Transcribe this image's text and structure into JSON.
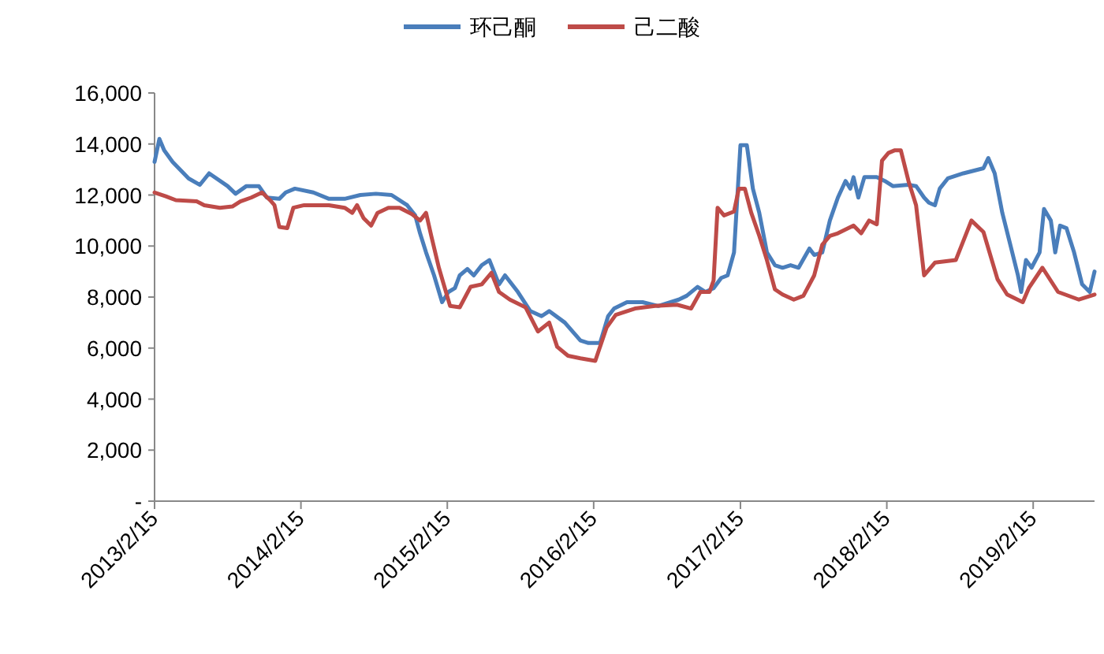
{
  "chart_data": {
    "type": "line",
    "legend": "top",
    "xlim": [
      "2013-02-15",
      "2019-07-18"
    ],
    "xticks": [
      {
        "value": "2013-02-15",
        "label": "2013/2/15"
      },
      {
        "value": "2014-02-15",
        "label": "2014/2/15"
      },
      {
        "value": "2015-02-15",
        "label": "2015/2/15"
      },
      {
        "value": "2016-02-15",
        "label": "2016/2/15"
      },
      {
        "value": "2017-02-15",
        "label": "2017/2/15"
      },
      {
        "value": "2018-02-15",
        "label": "2018/2/15"
      },
      {
        "value": "2019-02-15",
        "label": "2019/2/15"
      }
    ],
    "ylim": [
      0,
      16000
    ],
    "yticks": [
      {
        "value": 0,
        "label": "-"
      },
      {
        "value": 2000,
        "label": "2,000"
      },
      {
        "value": 4000,
        "label": "4,000"
      },
      {
        "value": 6000,
        "label": "6,000"
      },
      {
        "value": 8000,
        "label": "8,000"
      },
      {
        "value": 10000,
        "label": "10,000"
      },
      {
        "value": 12000,
        "label": "12,000"
      },
      {
        "value": 14000,
        "label": "14,000"
      },
      {
        "value": 16000,
        "label": "16,000"
      }
    ],
    "series": [
      {
        "name": "环己酮",
        "color": "#4a7ebb",
        "x": [
          "2013-02-15",
          "2013-02-27",
          "2013-03-11",
          "2013-04-01",
          "2013-05-11",
          "2013-06-08",
          "2013-07-01",
          "2013-08-16",
          "2013-09-05",
          "2013-10-02",
          "2013-11-02",
          "2013-11-22",
          "2013-12-23",
          "2014-01-08",
          "2014-01-31",
          "2014-03-18",
          "2014-04-26",
          "2014-06-04",
          "2014-07-13",
          "2014-08-21",
          "2014-09-29",
          "2014-11-07",
          "2014-11-27",
          "2014-12-09",
          "2014-12-24",
          "2015-01-13",
          "2015-02-02",
          "2015-02-18",
          "2015-03-06",
          "2015-03-18",
          "2015-04-06",
          "2015-04-22",
          "2015-05-12",
          "2015-05-31",
          "2015-06-24",
          "2015-07-09",
          "2015-08-10",
          "2015-09-10",
          "2015-10-08",
          "2015-10-27",
          "2015-12-05",
          "2016-01-13",
          "2016-02-02",
          "2016-03-02",
          "2016-03-22",
          "2016-04-06",
          "2016-05-08",
          "2016-06-16",
          "2016-07-25",
          "2016-09-14",
          "2016-10-04",
          "2016-10-31",
          "2016-11-20",
          "2016-12-10",
          "2016-12-29",
          "2017-01-14",
          "2017-01-30",
          "2017-02-15",
          "2017-03-03",
          "2017-03-18",
          "2017-04-03",
          "2017-04-22",
          "2017-05-12",
          "2017-05-31",
          "2017-06-20",
          "2017-07-10",
          "2017-08-06",
          "2017-08-18",
          "2017-09-07",
          "2017-09-26",
          "2017-10-16",
          "2017-11-04",
          "2017-11-16",
          "2017-11-24",
          "2017-12-06",
          "2017-12-21",
          "2018-01-21",
          "2018-02-10",
          "2018-03-02",
          "2018-04-10",
          "2018-04-29",
          "2018-05-19",
          "2018-05-31",
          "2018-06-15",
          "2018-06-27",
          "2018-07-17",
          "2018-08-25",
          "2018-10-14",
          "2018-10-26",
          "2018-11-11",
          "2018-11-30",
          "2018-12-20",
          "2019-01-08",
          "2019-01-16",
          "2019-01-28",
          "2019-02-11",
          "2019-03-03",
          "2019-03-14",
          "2019-03-31",
          "2019-04-11",
          "2019-04-23",
          "2019-05-09",
          "2019-05-28",
          "2019-06-17",
          "2019-07-06",
          "2019-07-18"
        ],
        "values": [
          13300,
          14200,
          13750,
          13300,
          12650,
          12400,
          12850,
          12350,
          12050,
          12350,
          12350,
          11900,
          11850,
          12100,
          12250,
          12100,
          11850,
          11850,
          12000,
          12050,
          12000,
          11600,
          11200,
          10500,
          9750,
          8850,
          7800,
          8200,
          8350,
          8850,
          9100,
          8850,
          9250,
          9450,
          8500,
          8850,
          8200,
          7450,
          7250,
          7450,
          7000,
          6300,
          6200,
          6200,
          7250,
          7550,
          7800,
          7800,
          7650,
          7900,
          8050,
          8400,
          8200,
          8350,
          8750,
          8850,
          9750,
          13950,
          13950,
          12250,
          11300,
          9750,
          9250,
          9150,
          9250,
          9150,
          9900,
          9650,
          9750,
          11000,
          11900,
          12550,
          12250,
          12700,
          11900,
          12700,
          12700,
          12550,
          12350,
          12400,
          12350,
          11900,
          11700,
          11600,
          12250,
          12650,
          12850,
          13050,
          13450,
          12850,
          11300,
          10050,
          8850,
          8200,
          9450,
          9150,
          9750,
          11450,
          11000,
          9750,
          10800,
          10700,
          9750,
          8500,
          8200,
          9000
        ]
      },
      {
        "name": "己二酸",
        "color": "#be4b48",
        "x": [
          "2013-02-15",
          "2013-03-15",
          "2013-04-09",
          "2013-05-31",
          "2013-06-19",
          "2013-07-28",
          "2013-08-28",
          "2013-09-17",
          "2013-10-14",
          "2013-11-10",
          "2013-11-30",
          "2013-12-11",
          "2013-12-23",
          "2014-01-12",
          "2014-01-27",
          "2014-02-23",
          "2014-04-26",
          "2014-06-04",
          "2014-06-23",
          "2014-07-05",
          "2014-07-21",
          "2014-08-09",
          "2014-08-25",
          "2014-09-21",
          "2014-10-19",
          "2014-11-19",
          "2014-12-09",
          "2014-12-24",
          "2015-01-06",
          "2015-01-25",
          "2015-02-06",
          "2015-02-22",
          "2015-03-18",
          "2015-04-14",
          "2015-05-12",
          "2015-06-05",
          "2015-06-24",
          "2015-07-21",
          "2015-08-29",
          "2015-09-29",
          "2015-10-27",
          "2015-11-16",
          "2015-12-13",
          "2016-01-13",
          "2016-02-19",
          "2016-03-18",
          "2016-04-10",
          "2016-05-28",
          "2016-07-17",
          "2016-09-10",
          "2016-10-15",
          "2016-11-07",
          "2016-11-30",
          "2016-12-10",
          "2016-12-20",
          "2017-01-05",
          "2017-01-30",
          "2017-02-11",
          "2017-02-26",
          "2017-03-14",
          "2017-04-03",
          "2017-04-22",
          "2017-05-12",
          "2017-05-31",
          "2017-06-28",
          "2017-07-22",
          "2017-08-18",
          "2017-09-07",
          "2017-09-26",
          "2017-10-16",
          "2017-11-24",
          "2017-12-13",
          "2018-01-02",
          "2018-01-21",
          "2018-02-03",
          "2018-02-19",
          "2018-03-06",
          "2018-03-22",
          "2018-04-10",
          "2018-04-29",
          "2018-05-19",
          "2018-06-15",
          "2018-08-06",
          "2018-09-14",
          "2018-10-14",
          "2018-11-18",
          "2018-12-12",
          "2019-01-20",
          "2019-02-04",
          "2019-03-10",
          "2019-04-18",
          "2019-06-09",
          "2019-07-18"
        ],
        "values": [
          12100,
          11950,
          11800,
          11750,
          11600,
          11500,
          11550,
          11750,
          11900,
          12100,
          11800,
          11600,
          10750,
          10700,
          11500,
          11600,
          11600,
          11500,
          11300,
          11600,
          11100,
          10800,
          11300,
          11500,
          11500,
          11250,
          11000,
          11300,
          10400,
          9150,
          8500,
          7650,
          7600,
          8400,
          8500,
          8950,
          8200,
          7900,
          7600,
          6650,
          7000,
          6050,
          5700,
          5600,
          5500,
          6800,
          7300,
          7550,
          7650,
          7700,
          7550,
          8200,
          8200,
          8650,
          11500,
          11200,
          11350,
          12250,
          12250,
          11300,
          10400,
          9450,
          8300,
          8100,
          7900,
          8050,
          8850,
          10050,
          10400,
          10500,
          10800,
          10500,
          11000,
          10850,
          13350,
          13650,
          13750,
          13750,
          12550,
          11600,
          8850,
          9350,
          9450,
          11000,
          10550,
          8700,
          8100,
          7800,
          8350,
          9150,
          8200,
          7900,
          8100
        ]
      }
    ]
  }
}
